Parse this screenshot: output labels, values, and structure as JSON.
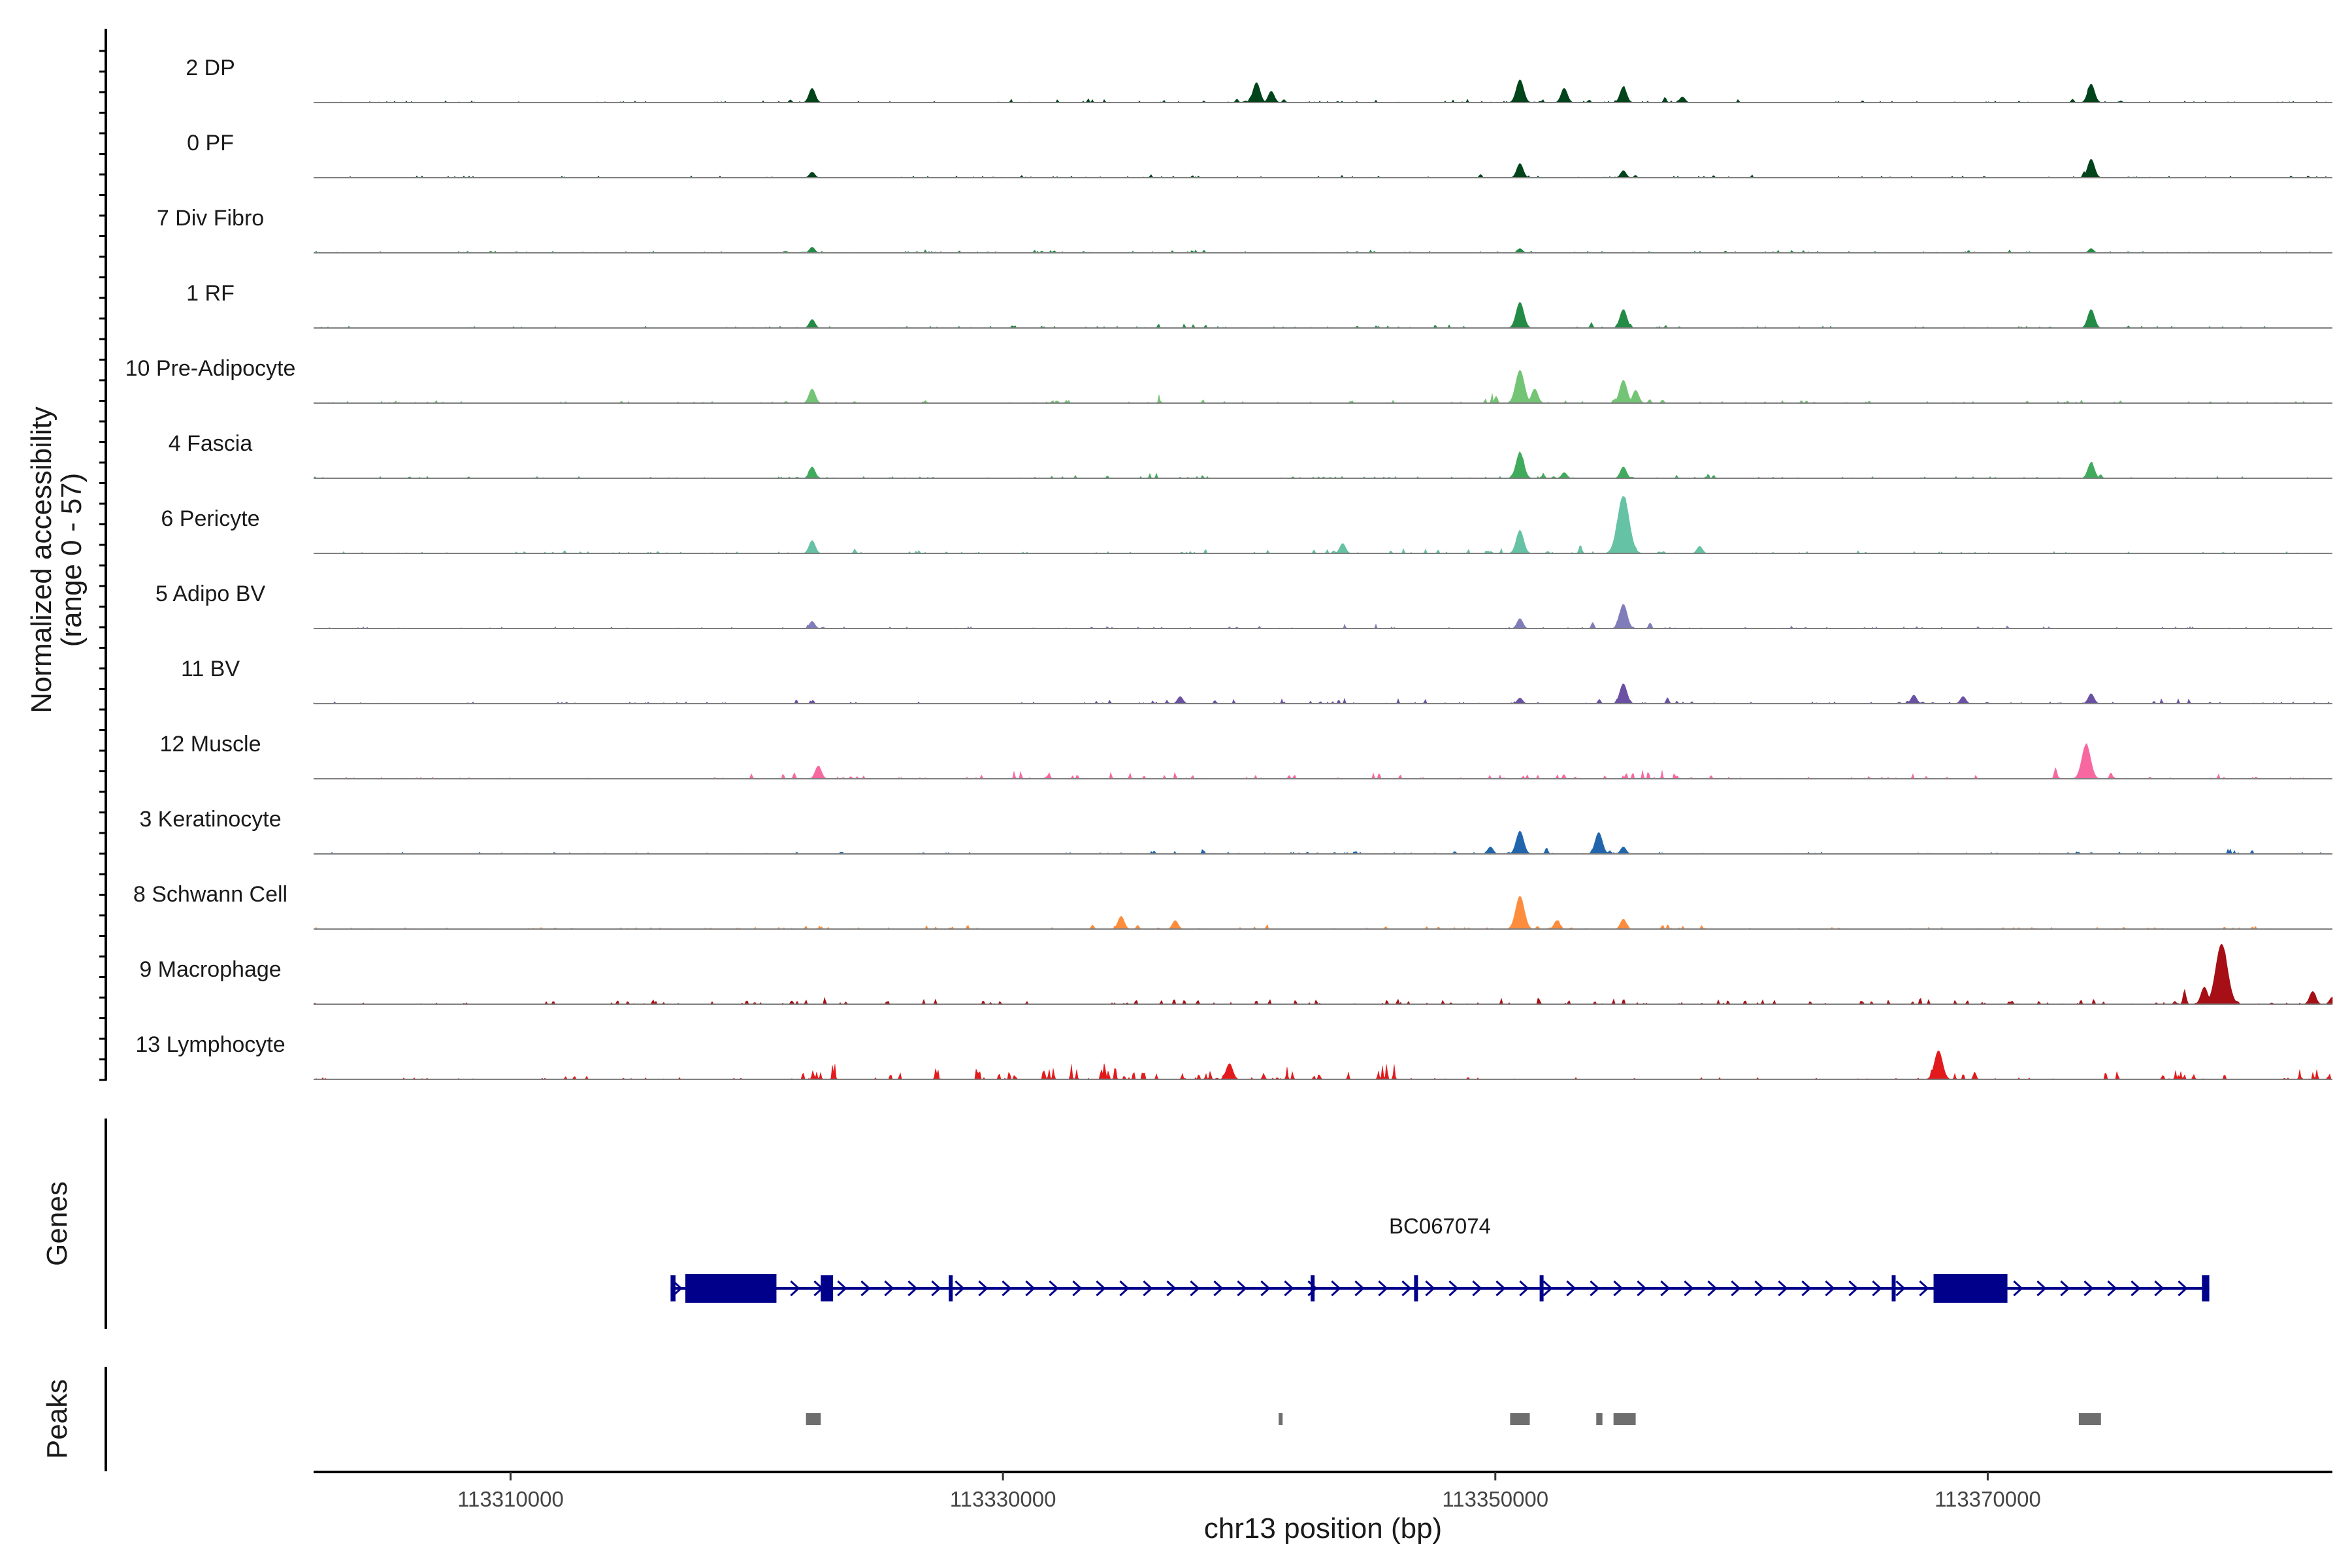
{
  "chart_data": {
    "type": "area",
    "title": "",
    "ylabel": "Normalized accessibility",
    "ylabel_range": "(range 0 - 57)",
    "ylim": [
      0,
      57
    ],
    "xlabel": "chr13 position (bp)",
    "xlim": [
      113302000,
      113384000
    ],
    "x_ticks": [
      113310000,
      113330000,
      113350000,
      113370000
    ],
    "x_tick_labels": [
      "113310000",
      "113330000",
      "113350000",
      "113370000"
    ],
    "tracks": [
      {
        "name": "2 DP",
        "color": "#00441b",
        "peaks": [
          [
            113322250,
            10
          ],
          [
            113340300,
            14
          ],
          [
            113340900,
            8
          ],
          [
            113351000,
            16
          ],
          [
            113352800,
            10
          ],
          [
            113355200,
            11
          ],
          [
            113357600,
            4
          ],
          [
            113374200,
            13
          ]
        ],
        "scatter": [
          [
            113331000,
            3
          ],
          [
            113334500,
            2
          ],
          [
            113337200,
            2
          ],
          [
            113344500,
            2
          ],
          [
            113348500,
            2
          ],
          [
            113360000,
            2
          ]
        ]
      },
      {
        "name": "0 PF",
        "color": "#00441b",
        "peaks": [
          [
            113322250,
            4
          ],
          [
            113351000,
            10
          ],
          [
            113355200,
            5
          ],
          [
            113374200,
            13
          ]
        ],
        "scatter": [
          [
            113331000,
            2
          ],
          [
            113337200,
            2
          ],
          [
            113345000,
            2
          ],
          [
            113360000,
            2
          ]
        ]
      },
      {
        "name": "7 Div Fibro",
        "color": "#238b45",
        "peaks": [
          [
            113322250,
            4
          ],
          [
            113351000,
            3
          ],
          [
            113374200,
            3
          ]
        ],
        "scatter": [
          [
            113320000,
            2
          ],
          [
            113327000,
            2
          ],
          [
            113332000,
            2
          ],
          [
            113337200,
            2
          ],
          [
            113344000,
            2
          ],
          [
            113362000,
            2
          ],
          [
            113370000,
            2
          ]
        ]
      },
      {
        "name": "1 RF",
        "color": "#238b45",
        "peaks": [
          [
            113322250,
            6
          ],
          [
            113351000,
            18
          ],
          [
            113355200,
            13
          ],
          [
            113374200,
            13
          ]
        ],
        "scatter": [
          [
            113331000,
            2
          ],
          [
            113337200,
            3
          ],
          [
            113345000,
            2
          ],
          [
            113348500,
            2
          ],
          [
            113357800,
            2
          ]
        ]
      },
      {
        "name": "10 Pre-Adipocyte",
        "color": "#74c476",
        "peaks": [
          [
            113322250,
            10
          ],
          [
            113351000,
            23
          ],
          [
            113351600,
            10
          ],
          [
            113355200,
            16
          ],
          [
            113355700,
            9
          ]
        ],
        "scatter": [
          [
            113306000,
            2
          ],
          [
            113326000,
            2
          ],
          [
            113333000,
            2
          ],
          [
            113337200,
            5
          ],
          [
            113345000,
            2
          ],
          [
            113349000,
            6
          ],
          [
            113362000,
            2
          ],
          [
            113374200,
            2
          ]
        ]
      },
      {
        "name": "4 Fascia",
        "color": "#41ab5d",
        "peaks": [
          [
            113322250,
            8
          ],
          [
            113351000,
            18
          ],
          [
            113352800,
            4
          ],
          [
            113355200,
            8
          ],
          [
            113374200,
            11
          ]
        ],
        "scatter": [
          [
            113333000,
            2
          ],
          [
            113337200,
            3
          ],
          [
            113343000,
            2
          ],
          [
            113358300,
            3
          ]
        ]
      },
      {
        "name": "6 Pericyte",
        "color": "#66c2a4",
        "peaks": [
          [
            113322250,
            9
          ],
          [
            113343800,
            7
          ],
          [
            113351000,
            16
          ],
          [
            113355200,
            40
          ],
          [
            113358300,
            5
          ]
        ],
        "scatter": [
          [
            113312000,
            2
          ],
          [
            113327000,
            2
          ],
          [
            113337200,
            3
          ],
          [
            113342000,
            3
          ],
          [
            113347000,
            3
          ],
          [
            113349800,
            3
          ],
          [
            113365000,
            2
          ]
        ]
      },
      {
        "name": "5 Adipo BV",
        "color": "#807dba",
        "peaks": [
          [
            113322250,
            5
          ],
          [
            113351000,
            7
          ],
          [
            113355200,
            17
          ]
        ],
        "scatter": [
          [
            113340000,
            2
          ],
          [
            113345000,
            2
          ],
          [
            113361000,
            2
          ],
          [
            113366000,
            2
          ],
          [
            113370000,
            2
          ]
        ]
      },
      {
        "name": "11 BV",
        "color": "#6a51a3",
        "peaks": [
          [
            113337200,
            5
          ],
          [
            113351000,
            4
          ],
          [
            113355200,
            14
          ],
          [
            113374200,
            7
          ],
          [
            113367000,
            6
          ],
          [
            113369000,
            5
          ]
        ],
        "scatter": [
          [
            113322250,
            3
          ],
          [
            113335000,
            3
          ],
          [
            113340500,
            3
          ],
          [
            113343000,
            3
          ],
          [
            113346000,
            3
          ],
          [
            113357000,
            3
          ],
          [
            113378000,
            3
          ]
        ]
      },
      {
        "name": "12 Muscle",
        "color": "#f768a1",
        "peaks": [
          [
            113374000,
            24
          ],
          [
            113322500,
            9
          ]
        ],
        "scatter": [
          [
            113320500,
            4
          ],
          [
            113324500,
            3
          ],
          [
            113330000,
            5
          ],
          [
            113332000,
            4
          ],
          [
            113335500,
            4
          ],
          [
            113337400,
            5
          ],
          [
            113341500,
            4
          ],
          [
            113345000,
            4
          ],
          [
            113350800,
            3
          ],
          [
            113353500,
            3
          ],
          [
            113355200,
            5
          ],
          [
            113356300,
            5
          ],
          [
            113357700,
            4
          ],
          [
            113366000,
            3
          ],
          [
            113368500,
            3
          ],
          [
            113380000,
            3
          ]
        ]
      },
      {
        "name": "3 Keratinocyte",
        "color": "#2166ac",
        "peaks": [
          [
            113351000,
            16
          ],
          [
            113354200,
            15
          ],
          [
            113355200,
            5
          ],
          [
            113349800,
            5
          ]
        ],
        "scatter": [
          [
            113322250,
            3
          ],
          [
            113337200,
            3
          ],
          [
            113343500,
            2
          ],
          [
            113374200,
            2
          ],
          [
            113379500,
            3
          ]
        ]
      },
      {
        "name": "8 Schwann Cell",
        "color": "#fd8d3c",
        "peaks": [
          [
            113351000,
            23
          ],
          [
            113334800,
            9
          ],
          [
            113355200,
            7
          ],
          [
            113337000,
            6
          ],
          [
            113352500,
            6
          ]
        ],
        "scatter": [
          [
            113322250,
            2
          ],
          [
            113328000,
            2
          ],
          [
            113340000,
            3
          ],
          [
            113346000,
            2
          ],
          [
            113358000,
            3
          ],
          [
            113380000,
            3
          ]
        ]
      },
      {
        "name": "9 Macrophage",
        "color": "#a50f15",
        "peaks": [
          [
            113379500,
            42
          ],
          [
            113383200,
            9
          ],
          [
            113378800,
            12
          ],
          [
            113384000,
            5
          ]
        ],
        "scatter": [
          [
            113312500,
            3
          ],
          [
            113315500,
            3
          ],
          [
            113318500,
            4
          ],
          [
            113321000,
            3
          ],
          [
            113322500,
            4
          ],
          [
            113326500,
            3
          ],
          [
            113330000,
            3
          ],
          [
            113335500,
            3
          ],
          [
            113337300,
            4
          ],
          [
            113341500,
            3
          ],
          [
            113346000,
            4
          ],
          [
            113348200,
            3
          ],
          [
            113350800,
            4
          ],
          [
            113352800,
            4
          ],
          [
            113355000,
            4
          ],
          [
            113359000,
            3
          ],
          [
            113362000,
            3
          ],
          [
            113366000,
            3
          ],
          [
            113368000,
            5
          ],
          [
            113371000,
            3
          ],
          [
            113374000,
            4
          ]
        ]
      },
      {
        "name": "13 Lymphocyte",
        "color": "#e31a1c",
        "peaks": [
          [
            113368000,
            20
          ],
          [
            113339200,
            11
          ]
        ],
        "scatter": [
          [
            113312000,
            5
          ],
          [
            113322000,
            6
          ],
          [
            113322800,
            10
          ],
          [
            113326000,
            6
          ],
          [
            113328000,
            8
          ],
          [
            113330000,
            6
          ],
          [
            113331500,
            9
          ],
          [
            113332800,
            12
          ],
          [
            113334000,
            13
          ],
          [
            113334800,
            7
          ],
          [
            113336200,
            6
          ],
          [
            113338500,
            5
          ],
          [
            113341800,
            8
          ],
          [
            113342500,
            6
          ],
          [
            113344800,
            10
          ],
          [
            113367800,
            7
          ],
          [
            113374200,
            5
          ],
          [
            113377800,
            6
          ],
          [
            113379200,
            6
          ],
          [
            113383800,
            8
          ],
          [
            113384400,
            6
          ]
        ]
      }
    ],
    "genes": [
      {
        "name": "BC067074",
        "strand": "+",
        "start": 113316500,
        "end": 113379000,
        "exons": [
          [
            113316500,
            113316700
          ],
          [
            113317100,
            113320800
          ],
          [
            113322600,
            113323100
          ],
          [
            113327800,
            113327950
          ],
          [
            113342500,
            113342650
          ],
          [
            113346700,
            113346800
          ],
          [
            113351800,
            113351950
          ],
          [
            113366100,
            113366250
          ],
          [
            113367800,
            113370800
          ],
          [
            113378700,
            113379000
          ]
        ]
      }
    ],
    "peak_regions": [
      [
        113322000,
        113322600
      ],
      [
        113341200,
        113341300
      ],
      [
        113350600,
        113351400
      ],
      [
        113354100,
        113354350
      ],
      [
        113354800,
        113355700
      ],
      [
        113373700,
        113374600
      ]
    ],
    "panel_labels": {
      "genes": "Genes",
      "peaks": "Peaks"
    }
  }
}
